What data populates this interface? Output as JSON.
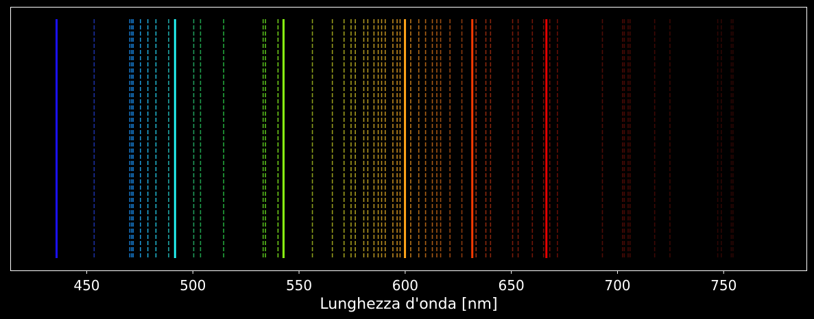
{
  "chart_data": {
    "type": "spectrum",
    "xlabel": "Lunghezza d'onda [nm]",
    "xlim": [
      414,
      789
    ],
    "xticks": [
      450,
      500,
      550,
      600,
      650,
      700,
      750
    ],
    "tick_labels": [
      "450",
      "500",
      "550",
      "600",
      "650",
      "700",
      "750"
    ],
    "background": "#000000",
    "frame_color": "#ffffff",
    "strong_lines": [
      {
        "wavelength": 435.8,
        "color": "#1a10ff"
      },
      {
        "wavelength": 491.6,
        "color": "#22f2f2"
      },
      {
        "wavelength": 542.7,
        "color": "#8bff12"
      },
      {
        "wavelength": 599.9,
        "color": "#ffa51a"
      },
      {
        "wavelength": 631.6,
        "color": "#ff3a00"
      },
      {
        "wavelength": 666.5,
        "color": "#e80000"
      }
    ],
    "faint_lines": [
      {
        "wavelength": 453.5,
        "color": "#1a2ea0"
      },
      {
        "wavelength": 470.3,
        "color": "#1577c9"
      },
      {
        "wavelength": 471.2,
        "color": "#1577c9"
      },
      {
        "wavelength": 471.9,
        "color": "#1577c9"
      },
      {
        "wavelength": 475.3,
        "color": "#1a8fce"
      },
      {
        "wavelength": 478.8,
        "color": "#1ea4d4"
      },
      {
        "wavelength": 482.6,
        "color": "#1fb1c8"
      },
      {
        "wavelength": 488.6,
        "color": "#1ea7a7"
      },
      {
        "wavelength": 500.4,
        "color": "#1f9c5a"
      },
      {
        "wavelength": 503.6,
        "color": "#1f9c4a"
      },
      {
        "wavelength": 514.5,
        "color": "#22a53b"
      },
      {
        "wavelength": 533.1,
        "color": "#54b91c"
      },
      {
        "wavelength": 534.2,
        "color": "#58bd1c"
      },
      {
        "wavelength": 540.1,
        "color": "#6ecb1a"
      },
      {
        "wavelength": 556.3,
        "color": "#8a9e1c"
      },
      {
        "wavelength": 565.7,
        "color": "#969a1c"
      },
      {
        "wavelength": 571.2,
        "color": "#a0a01e"
      },
      {
        "wavelength": 574.5,
        "color": "#a69d1e"
      },
      {
        "wavelength": 576.5,
        "color": "#a89a1e"
      },
      {
        "wavelength": 580.5,
        "color": "#ad9620"
      },
      {
        "wavelength": 582.4,
        "color": "#b09420"
      },
      {
        "wavelength": 585.3,
        "color": "#b39220"
      },
      {
        "wavelength": 587.3,
        "color": "#b6901f"
      },
      {
        "wavelength": 588.9,
        "color": "#b88e1f"
      },
      {
        "wavelength": 590.6,
        "color": "#ba8c1e"
      },
      {
        "wavelength": 594.2,
        "color": "#be881e"
      },
      {
        "wavelength": 596.2,
        "color": "#c0861d"
      },
      {
        "wavelength": 597.6,
        "color": "#c2841d"
      },
      {
        "wavelength": 602.6,
        "color": "#b8741a"
      },
      {
        "wavelength": 606.4,
        "color": "#b36a18"
      },
      {
        "wavelength": 609.6,
        "color": "#ae6216"
      },
      {
        "wavelength": 612.8,
        "color": "#a85a14"
      },
      {
        "wavelength": 614.9,
        "color": "#a35412"
      },
      {
        "wavelength": 616.7,
        "color": "#9e4e10"
      },
      {
        "wavelength": 621.1,
        "color": "#964610"
      },
      {
        "wavelength": 626.7,
        "color": "#8a3a0e"
      },
      {
        "wavelength": 633.4,
        "color": "#a03010"
      },
      {
        "wavelength": 638.0,
        "color": "#8c280c"
      },
      {
        "wavelength": 640.2,
        "color": "#84240c"
      },
      {
        "wavelength": 650.6,
        "color": "#7a1a0a"
      },
      {
        "wavelength": 653.2,
        "color": "#761a0a"
      },
      {
        "wavelength": 659.9,
        "color": "#701608"
      },
      {
        "wavelength": 665.2,
        "color": "#6e1208"
      },
      {
        "wavelength": 668.1,
        "color": "#6a1008"
      },
      {
        "wavelength": 671.7,
        "color": "#640e06"
      },
      {
        "wavelength": 692.9,
        "color": "#4e0c06"
      },
      {
        "wavelength": 702.4,
        "color": "#480a05"
      },
      {
        "wavelength": 703.2,
        "color": "#480a05"
      },
      {
        "wavelength": 705.0,
        "color": "#460a05"
      },
      {
        "wavelength": 705.9,
        "color": "#460a05"
      },
      {
        "wavelength": 717.5,
        "color": "#3e0805"
      },
      {
        "wavelength": 724.7,
        "color": "#3a0804"
      },
      {
        "wavelength": 747.2,
        "color": "#2e0604"
      },
      {
        "wavelength": 748.9,
        "color": "#2e0604"
      },
      {
        "wavelength": 753.6,
        "color": "#2c0604"
      },
      {
        "wavelength": 754.4,
        "color": "#2c0604"
      }
    ]
  }
}
